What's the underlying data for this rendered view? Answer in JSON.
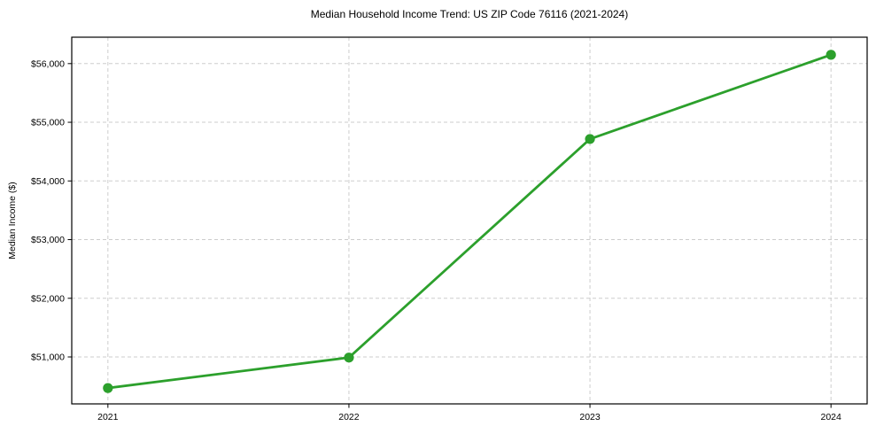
{
  "figure": {
    "title": "Median Household Income Trend: US ZIP Code 76116 (2021-2024)"
  },
  "chart_data": {
    "type": "line",
    "title": "Median Household Income Trend: US ZIP Code 76116 (2021-2024)",
    "xlabel": "",
    "ylabel": "Median Income ($)",
    "categories": [
      "2021",
      "2022",
      "2023",
      "2024"
    ],
    "series": [
      {
        "name": "Median Household Income",
        "values": [
          50470,
          50990,
          54715,
          56150
        ],
        "color": "#2ca02c"
      }
    ],
    "ylim": [
      50200,
      56450
    ],
    "yticks": [
      51000,
      52000,
      53000,
      54000,
      55000,
      56000
    ],
    "ytick_labels": [
      "$51,000",
      "$52,000",
      "$53,000",
      "$54,000",
      "$55,000",
      "$56,000"
    ],
    "xtick_labels": [
      "2021",
      "2022",
      "2023",
      "2024"
    ],
    "grid": true,
    "grid_style": "dashed",
    "legend_position": "none",
    "marker": "circle",
    "colors": {
      "line": "#2ca02c",
      "marker": "#2ca02c",
      "grid": "#cdcdcd",
      "spine": "#000000",
      "tick_text": "#000000",
      "background": "#ffffff"
    }
  }
}
